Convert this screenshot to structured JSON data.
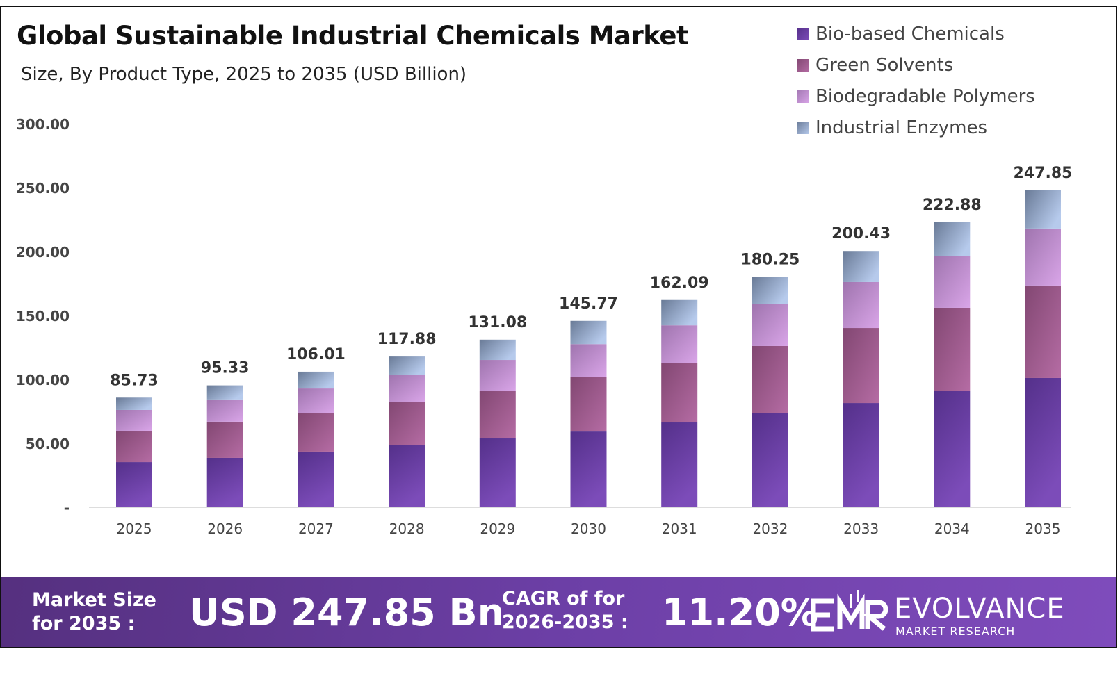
{
  "chart_data": {
    "type": "bar",
    "stacked": true,
    "title": "Global Sustainable Industrial Chemicals Market",
    "subtitle": "Size, By Product Type, 2025 to 2035 (USD Billion)",
    "categories": [
      "2025",
      "2026",
      "2027",
      "2028",
      "2029",
      "2030",
      "2031",
      "2032",
      "2033",
      "2034",
      "2035"
    ],
    "series": [
      {
        "name": "Bio-based Chemicals",
        "color": "#6a3ca3",
        "values": [
          35.3,
          38.6,
          43.5,
          48.4,
          53.8,
          59.2,
          66.3,
          73.4,
          81.5,
          90.8,
          101.1
        ]
      },
      {
        "name": "Green Solvents",
        "color": "#a05e93",
        "values": [
          24.5,
          28.3,
          30.4,
          34.2,
          37.5,
          42.9,
          46.7,
          52.7,
          58.7,
          65.2,
          72.3
        ]
      },
      {
        "name": "Biodegradable Polymers",
        "color": "#c18fd0",
        "values": [
          16.3,
          17.4,
          19.0,
          20.7,
          23.9,
          25.5,
          29.3,
          32.6,
          35.9,
          40.2,
          44.6
        ]
      },
      {
        "name": "Industrial Enzymes",
        "color": "#93a6c8",
        "values": [
          9.63,
          11.03,
          13.11,
          14.58,
          15.88,
          18.17,
          19.79,
          21.55,
          24.33,
          26.68,
          29.85
        ]
      }
    ],
    "totals": [
      "85.73",
      "95.33",
      "106.01",
      "117.88",
      "131.08",
      "145.77",
      "162.09",
      "180.25",
      "200.43",
      "222.88",
      "247.85"
    ],
    "yticks": [
      "-",
      "50.00",
      "100.00",
      "150.00",
      "200.00",
      "250.00",
      "300.00"
    ],
    "ylim": [
      0,
      300
    ],
    "grid": false,
    "legend": "top-right"
  },
  "footer": {
    "market_label_1": "Market Size",
    "market_label_2": "for 2035 :",
    "market_value": "USD 247.85 Bn",
    "cagr_label_1": "CAGR of for",
    "cagr_label_2": "2026-2035 :",
    "cagr_value": "11.20%",
    "logo_main": "EVOLVANCE",
    "logo_sub": "MARKET RESEARCH"
  }
}
